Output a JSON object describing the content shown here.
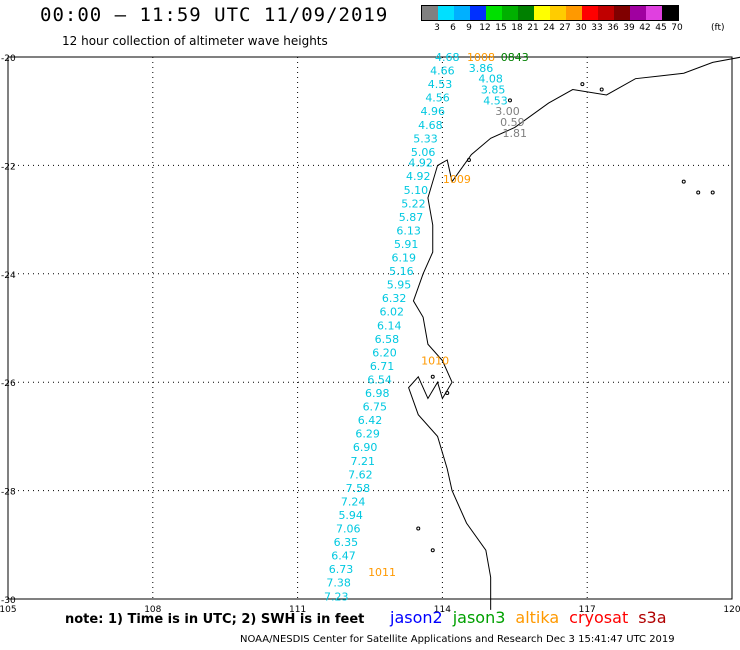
{
  "header": {
    "title": "00:00 – 11:59 UTC 11/09/2019",
    "subtitle": "12 hour collection of altimeter wave heights"
  },
  "legend": {
    "unit": "(ft)",
    "bins": [
      {
        "label": "3",
        "color": "#808080"
      },
      {
        "label": "6",
        "color": "#00e0ff"
      },
      {
        "label": "9",
        "color": "#00b0ff"
      },
      {
        "label": "12",
        "color": "#0030ff"
      },
      {
        "label": "15",
        "color": "#00e000"
      },
      {
        "label": "18",
        "color": "#00b000"
      },
      {
        "label": "21",
        "color": "#008000"
      },
      {
        "label": "24",
        "color": "#ffff00"
      },
      {
        "label": "27",
        "color": "#ffcc00"
      },
      {
        "label": "30",
        "color": "#ff9900"
      },
      {
        "label": "33",
        "color": "#ff0000"
      },
      {
        "label": "36",
        "color": "#c00000"
      },
      {
        "label": "39",
        "color": "#800000"
      },
      {
        "label": "42",
        "color": "#a000a0"
      },
      {
        "label": "45",
        "color": "#e040e0"
      },
      {
        "label": "70",
        "color": "#000000"
      }
    ]
  },
  "map": {
    "lon_range": [
      105,
      120
    ],
    "lat_range": [
      -30,
      -20
    ],
    "x_ticks": [
      "105",
      "108",
      "111",
      "114",
      "117",
      "120"
    ],
    "y_ticks": [
      "-20",
      "-22",
      "-24",
      "-26",
      "-28",
      "-30"
    ],
    "labels_color": "#00c8e0",
    "gray_color": "#808080",
    "swh_labels": [
      {
        "text": "4.68",
        "lon": 114.1,
        "lat": -20.0
      },
      {
        "text": "4.66",
        "lon": 114.0,
        "lat": -20.25
      },
      {
        "text": "4.53",
        "lon": 113.95,
        "lat": -20.5
      },
      {
        "text": "4.56",
        "lon": 113.9,
        "lat": -20.75
      },
      {
        "text": "4.96",
        "lon": 113.8,
        "lat": -21.0
      },
      {
        "text": "4.68",
        "lon": 113.75,
        "lat": -21.25
      },
      {
        "text": "5.33",
        "lon": 113.65,
        "lat": -21.5
      },
      {
        "text": "5.06",
        "lon": 113.6,
        "lat": -21.75
      },
      {
        "text": "4.92",
        "lon": 113.55,
        "lat": -21.95
      },
      {
        "text": "4.92",
        "lon": 113.5,
        "lat": -22.2
      },
      {
        "text": "5.10",
        "lon": 113.45,
        "lat": -22.45
      },
      {
        "text": "5.22",
        "lon": 113.4,
        "lat": -22.7
      },
      {
        "text": "5.87",
        "lon": 113.35,
        "lat": -22.95
      },
      {
        "text": "6.13",
        "lon": 113.3,
        "lat": -23.2
      },
      {
        "text": "5.91",
        "lon": 113.25,
        "lat": -23.45
      },
      {
        "text": "6.19",
        "lon": 113.2,
        "lat": -23.7
      },
      {
        "text": "5.16",
        "lon": 113.15,
        "lat": -23.95
      },
      {
        "text": "5.95",
        "lon": 113.1,
        "lat": -24.2
      },
      {
        "text": "6.32",
        "lon": 113.0,
        "lat": -24.45
      },
      {
        "text": "6.02",
        "lon": 112.95,
        "lat": -24.7
      },
      {
        "text": "6.14",
        "lon": 112.9,
        "lat": -24.95
      },
      {
        "text": "6.58",
        "lon": 112.85,
        "lat": -25.2
      },
      {
        "text": "6.20",
        "lon": 112.8,
        "lat": -25.45
      },
      {
        "text": "6.71",
        "lon": 112.75,
        "lat": -25.7
      },
      {
        "text": "6.54",
        "lon": 112.7,
        "lat": -25.95
      },
      {
        "text": "6.98",
        "lon": 112.65,
        "lat": -26.2
      },
      {
        "text": "6.75",
        "lon": 112.6,
        "lat": -26.45
      },
      {
        "text": "6.42",
        "lon": 112.5,
        "lat": -26.7
      },
      {
        "text": "6.29",
        "lon": 112.45,
        "lat": -26.95
      },
      {
        "text": "6.90",
        "lon": 112.4,
        "lat": -27.2
      },
      {
        "text": "7.21",
        "lon": 112.35,
        "lat": -27.45
      },
      {
        "text": "7.62",
        "lon": 112.3,
        "lat": -27.7
      },
      {
        "text": "7.58",
        "lon": 112.25,
        "lat": -27.95
      },
      {
        "text": "7.24",
        "lon": 112.15,
        "lat": -28.2
      },
      {
        "text": "5.94",
        "lon": 112.1,
        "lat": -28.45
      },
      {
        "text": "7.06",
        "lon": 112.05,
        "lat": -28.7
      },
      {
        "text": "6.35",
        "lon": 112.0,
        "lat": -28.95
      },
      {
        "text": "6.47",
        "lon": 111.95,
        "lat": -29.2
      },
      {
        "text": "6.73",
        "lon": 111.9,
        "lat": -29.45
      },
      {
        "text": "7.38",
        "lon": 111.85,
        "lat": -29.7
      },
      {
        "text": "7.23",
        "lon": 111.8,
        "lat": -29.95
      }
    ],
    "swh_labels_right": [
      {
        "text": "3.86",
        "lon": 114.8,
        "lat": -20.2
      },
      {
        "text": "4.08",
        "lon": 115.0,
        "lat": -20.4
      },
      {
        "text": "3.85",
        "lon": 115.05,
        "lat": -20.6
      },
      {
        "text": "4.53",
        "lon": 115.1,
        "lat": -20.8
      }
    ],
    "gray_labels": [
      {
        "text": "3.00",
        "lon": 115.35,
        "lat": -21.0
      },
      {
        "text": "0.59",
        "lon": 115.45,
        "lat": -21.2
      },
      {
        "text": "1.81",
        "lon": 115.5,
        "lat": -21.4
      }
    ],
    "time_labels": [
      {
        "text": "1008",
        "lon": 114.8,
        "lat": -20.0,
        "color": "#ff9900"
      },
      {
        "text": "0843",
        "lon": 115.5,
        "lat": -20.0,
        "color": "#008000"
      },
      {
        "text": "1009",
        "lon": 114.3,
        "lat": -22.25,
        "color": "#ff9900"
      },
      {
        "text": "1010",
        "lon": 113.85,
        "lat": -25.6,
        "color": "#ff9900"
      },
      {
        "text": "1011",
        "lon": 112.75,
        "lat": -29.5,
        "color": "#ff9900"
      }
    ]
  },
  "footer": {
    "note": "note: 1) Time is in UTC; 2) SWH is in feet",
    "satellites": [
      {
        "name": "jason2",
        "color": "#0000ff"
      },
      {
        "name": "jason3",
        "color": "#00a000"
      },
      {
        "name": "altika",
        "color": "#ff9900"
      },
      {
        "name": "cryosat",
        "color": "#ff0000"
      },
      {
        "name": "s3a",
        "color": "#b00000"
      }
    ],
    "credit": "NOAA/NESDIS Center for Satellite Applications and Research     Dec  3 15:41:47 UTC 2019"
  }
}
